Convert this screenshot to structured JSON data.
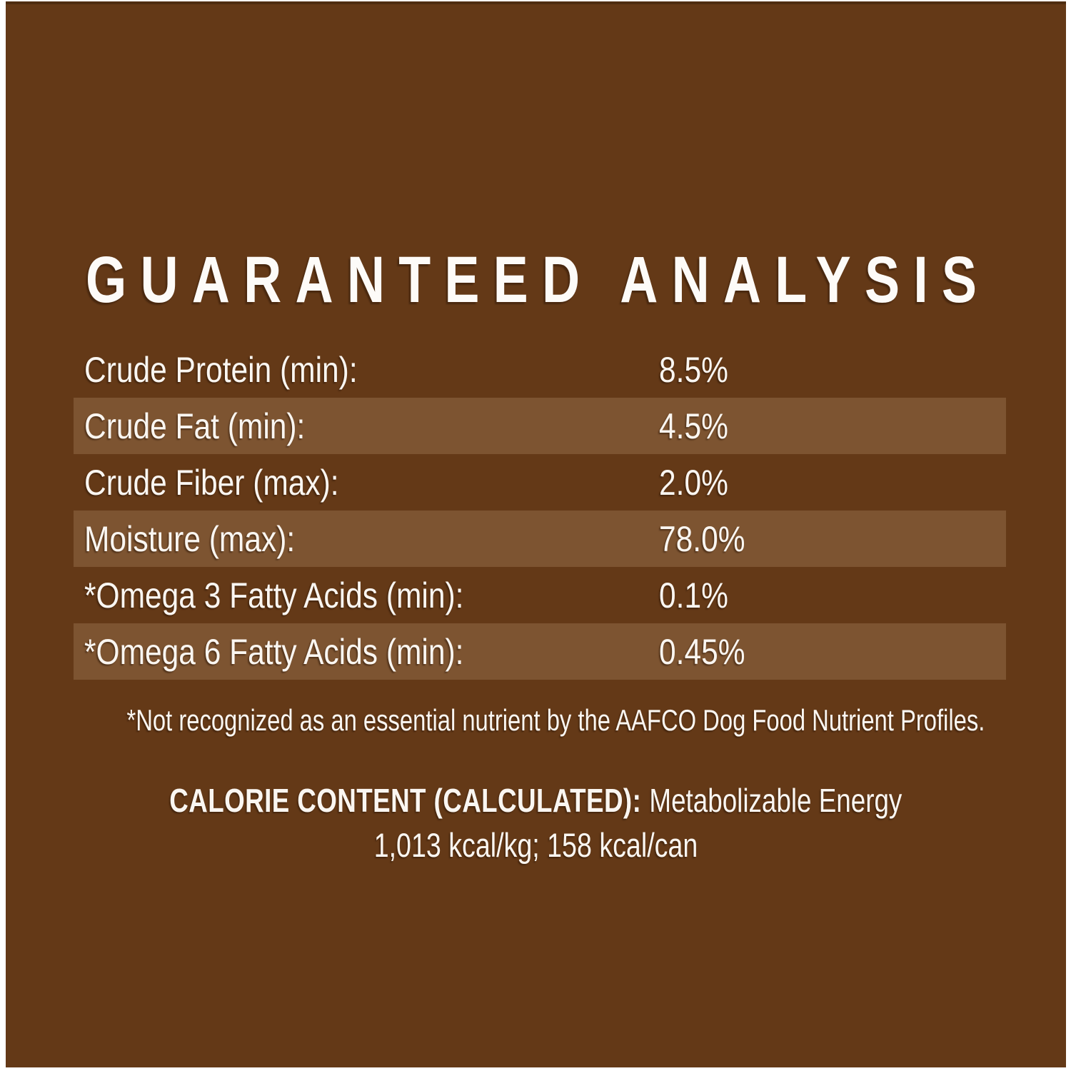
{
  "label": {
    "title": "GUARANTEED ANALYSIS",
    "colors": {
      "panel_background": "#643917",
      "stripe": "#7d5431",
      "text": "#faf6f1",
      "page_margin": "#ffffff",
      "panel_top_edge": "#4f2d11"
    },
    "rows": [
      {
        "label": "Crude Protein (min):",
        "value": "8.5%"
      },
      {
        "label": "Crude Fat (min):",
        "value": "4.5%"
      },
      {
        "label": "Crude Fiber (max):",
        "value": "2.0%"
      },
      {
        "label": "Moisture (max):",
        "value": "78.0%"
      },
      {
        "label": "*Omega 3 Fatty Acids (min):",
        "value": "0.1%"
      },
      {
        "label": "*Omega 6 Fatty Acids (min):",
        "value": "0.45%"
      }
    ],
    "footnote": "*Not recognized as an essential nutrient by the AAFCO Dog Food Nutrient Profiles.",
    "calorie": {
      "heading": "CALORIE CONTENT (CALCULATED):",
      "heading_suffix": "Metabolizable Energy",
      "line2": "1,013 kcal/kg; 158 kcal/can"
    }
  }
}
